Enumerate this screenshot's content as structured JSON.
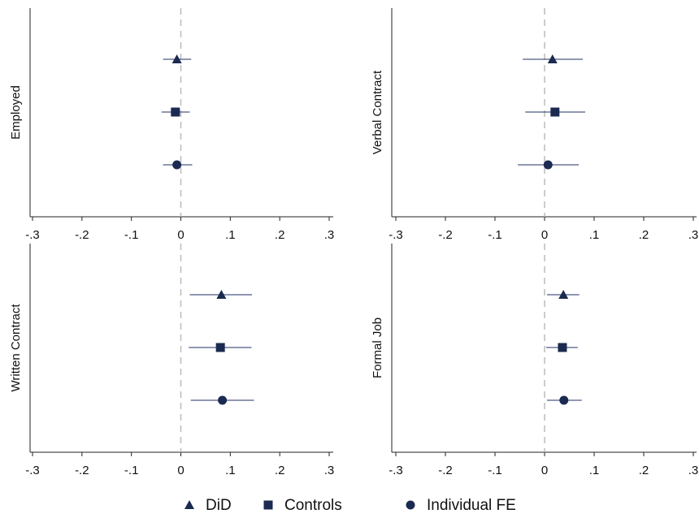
{
  "chart_data": {
    "type": "coefplot",
    "panels": [
      "Employed",
      "Verbal Contract",
      "Written Contract",
      "Formal Job"
    ],
    "xlim": [
      -0.3,
      0.3
    ],
    "xticks": [
      {
        "value": -0.3,
        "label": "-.3"
      },
      {
        "value": -0.2,
        "label": "-.2"
      },
      {
        "value": -0.1,
        "label": "-.1"
      },
      0,
      {
        "value": 0.1,
        "label": ".1"
      },
      {
        "value": 0.2,
        "label": ".2"
      },
      {
        "value": 0.3,
        "label": ".3"
      }
    ],
    "refline": 0,
    "legend": "bottom",
    "series": [
      {
        "name": "DiD",
        "marker": "triangle",
        "color": "#1b2a50",
        "ci_color": "#4d5b82",
        "values": [
          -0.008,
          0.016,
          0.082,
          0.038
        ],
        "ci_low": [
          -0.036,
          -0.044,
          0.018,
          0.005
        ],
        "ci_high": [
          0.021,
          0.077,
          0.144,
          0.07
        ]
      },
      {
        "name": "Controls",
        "marker": "square",
        "color": "#1b2a50",
        "ci_color": "#4d5b82",
        "values": [
          -0.011,
          0.021,
          0.08,
          0.036
        ],
        "ci_low": [
          -0.039,
          -0.039,
          0.016,
          0.003
        ],
        "ci_high": [
          0.018,
          0.082,
          0.143,
          0.067
        ]
      },
      {
        "name": "Individual FE",
        "marker": "circle",
        "color": "#1b2a50",
        "ci_color": "#4d5b82",
        "values": [
          -0.008,
          0.007,
          0.084,
          0.039
        ],
        "ci_low": [
          -0.036,
          -0.054,
          0.02,
          0.005
        ],
        "ci_high": [
          0.023,
          0.069,
          0.148,
          0.075
        ]
      }
    ]
  }
}
